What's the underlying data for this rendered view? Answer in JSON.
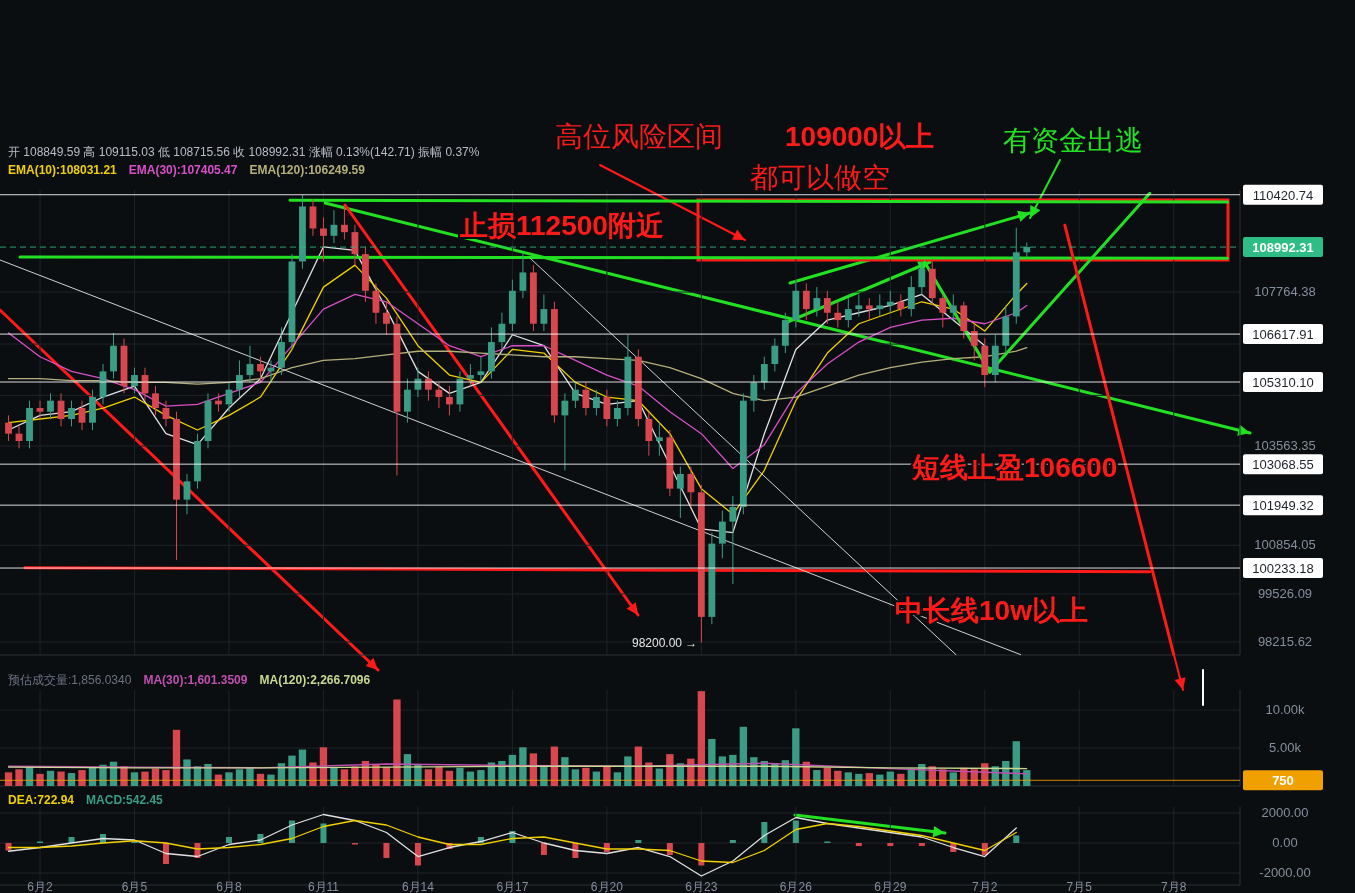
{
  "chart_data": [
    {
      "type": "candlestick",
      "subtitle": "开 108849.59 高 109115.03 低 108715.56 收 108992.31 涨幅 0.13%(142.71) 振幅 0.37%",
      "x": [
        "--06-01T00:00",
        "--06-01T08:00",
        "--06-01T16:00",
        "--06-02T00:00",
        "--06-02T08:00",
        "--06-02T16:00",
        "--06-03T00:00",
        "--06-03T08:00",
        "--06-03T16:00",
        "--06-04T00:00",
        "--06-04T08:00",
        "--06-04T16:00",
        "--06-05T00:00",
        "--06-05T08:00",
        "--06-05T16:00",
        "--06-06T00:00",
        "--06-06T08:00",
        "--06-06T16:00",
        "--06-07T00:00",
        "--06-07T08:00",
        "--06-07T16:00",
        "--06-08T00:00",
        "--06-08T08:00",
        "--06-08T16:00",
        "--06-09T00:00",
        "--06-09T08:00",
        "--06-09T16:00",
        "--06-10T00:00",
        "--06-10T08:00",
        "--06-10T16:00",
        "--06-11T00:00",
        "--06-11T08:00",
        "--06-11T16:00",
        "--06-12T00:00",
        "--06-12T08:00",
        "--06-12T16:00",
        "--06-13T00:00",
        "--06-13T08:00",
        "--06-13T16:00",
        "--06-14T00:00",
        "--06-14T08:00",
        "--06-14T16:00",
        "--06-15T00:00",
        "--06-15T08:00",
        "--06-15T16:00",
        "--06-16T00:00",
        "--06-16T08:00",
        "--06-16T16:00",
        "--06-17T00:00",
        "--06-17T08:00",
        "--06-17T16:00",
        "--06-18T00:00",
        "--06-18T08:00",
        "--06-18T16:00",
        "--06-19T00:00",
        "--06-19T08:00",
        "--06-19T16:00",
        "--06-20T00:00",
        "--06-20T08:00",
        "--06-20T16:00",
        "--06-21T00:00",
        "--06-21T08:00",
        "--06-21T16:00",
        "--06-22T00:00",
        "--06-22T08:00",
        "--06-22T16:00",
        "--06-23T00:00",
        "--06-23T08:00",
        "--06-23T16:00",
        "--06-24T00:00",
        "--06-24T08:00",
        "--06-24T16:00",
        "--06-25T00:00",
        "--06-25T08:00",
        "--06-25T16:00",
        "--06-26T00:00",
        "--06-26T08:00",
        "--06-26T16:00",
        "--06-27T00:00",
        "--06-27T08:00",
        "--06-27T16:00",
        "--06-28T00:00",
        "--06-28T08:00",
        "--06-28T16:00",
        "--06-29T00:00",
        "--06-29T08:00",
        "--06-29T16:00",
        "--06-30T00:00",
        "--06-30T08:00",
        "--06-30T16:00",
        "--07-01T00:00",
        "--07-01T08:00",
        "--07-01T16:00",
        "--07-02T00:00",
        "--07-02T08:00",
        "--07-02T16:00",
        "--07-03T00:00",
        "--07-03T08:00"
      ],
      "ohlc": [
        [
          104200,
          104400,
          103700,
          103900
        ],
        [
          103900,
          104100,
          103500,
          103700
        ],
        [
          103700,
          104800,
          103500,
          104600
        ],
        [
          104600,
          104800,
          104300,
          104500
        ],
        [
          104500,
          105000,
          104300,
          104800
        ],
        [
          104800,
          105000,
          104100,
          104300
        ],
        [
          104300,
          104800,
          104100,
          104600
        ],
        [
          104600,
          104800,
          104000,
          104200
        ],
        [
          104200,
          105100,
          104000,
          104900
        ],
        [
          104900,
          105800,
          104700,
          105600
        ],
        [
          105600,
          106650,
          105400,
          106300
        ],
        [
          106300,
          106500,
          105000,
          105200
        ],
        [
          105200,
          105700,
          105000,
          105500
        ],
        [
          105500,
          105700,
          104800,
          105000
        ],
        [
          105000,
          105200,
          104400,
          104600
        ],
        [
          104600,
          104800,
          104100,
          104300
        ],
        [
          104300,
          104500,
          100450,
          102100
        ],
        [
          102100,
          102800,
          101700,
          102600
        ],
        [
          102600,
          103900,
          102400,
          103700
        ],
        [
          103700,
          105000,
          103500,
          104800
        ],
        [
          104800,
          105000,
          104500,
          104700
        ],
        [
          104700,
          105300,
          104500,
          105100
        ],
        [
          105100,
          105900,
          104900,
          105500
        ],
        [
          105500,
          106300,
          105300,
          105800
        ],
        [
          105800,
          106000,
          105300,
          105600
        ],
        [
          105600,
          105900,
          105300,
          105700
        ],
        [
          105700,
          106800,
          105500,
          106400
        ],
        [
          106400,
          108800,
          106200,
          108600
        ],
        [
          108600,
          110420,
          108400,
          110100
        ],
        [
          110100,
          110300,
          109300,
          109500
        ],
        [
          109500,
          109800,
          108600,
          109300
        ],
        [
          109300,
          110000,
          109100,
          109600
        ],
        [
          109600,
          110100,
          109200,
          109400
        ],
        [
          109400,
          109600,
          108500,
          108800
        ],
        [
          108800,
          109000,
          107500,
          107800
        ],
        [
          107800,
          108000,
          106900,
          107200
        ],
        [
          107200,
          107500,
          106600,
          106900
        ],
        [
          106900,
          107100,
          102760,
          104500
        ],
        [
          104500,
          105400,
          104200,
          105100
        ],
        [
          105100,
          105700,
          104900,
          105400
        ],
        [
          105400,
          105600,
          104800,
          105100
        ],
        [
          105100,
          105300,
          104600,
          104900
        ],
        [
          104900,
          105200,
          104400,
          104700
        ],
        [
          104700,
          105600,
          104500,
          105400
        ],
        [
          105400,
          105800,
          105200,
          105500
        ],
        [
          105500,
          106000,
          105300,
          105600
        ],
        [
          105600,
          106800,
          105400,
          106400
        ],
        [
          106400,
          107200,
          106200,
          106900
        ],
        [
          106900,
          108100,
          106700,
          107800
        ],
        [
          107800,
          108800,
          107600,
          108300
        ],
        [
          108300,
          108500,
          106700,
          106900
        ],
        [
          106900,
          107700,
          106700,
          107300
        ],
        [
          107300,
          107500,
          104200,
          104400
        ],
        [
          104400,
          105000,
          102900,
          104800
        ],
        [
          104800,
          105300,
          104600,
          105100
        ],
        [
          105100,
          105300,
          104400,
          104600
        ],
        [
          104600,
          105100,
          104400,
          104900
        ],
        [
          104900,
          105100,
          104100,
          104300
        ],
        [
          104300,
          104800,
          104100,
          104600
        ],
        [
          104600,
          106600,
          104400,
          106000
        ],
        [
          106000,
          106200,
          104100,
          104300
        ],
        [
          104300,
          104500,
          103300,
          103700
        ],
        [
          103700,
          104200,
          103300,
          103800
        ],
        [
          103800,
          104000,
          102200,
          102400
        ],
        [
          102400,
          103000,
          101600,
          102800
        ],
        [
          102800,
          103000,
          101900,
          102300
        ],
        [
          102300,
          102500,
          98200,
          98900
        ],
        [
          98900,
          101200,
          98700,
          100900
        ],
        [
          100900,
          101800,
          100500,
          101500
        ],
        [
          101500,
          102200,
          99800,
          101900
        ],
        [
          101900,
          105000,
          101700,
          104800
        ],
        [
          104800,
          105500,
          104500,
          105300
        ],
        [
          105300,
          106000,
          105100,
          105800
        ],
        [
          105800,
          106500,
          105600,
          106300
        ],
        [
          106300,
          107200,
          106100,
          107000
        ],
        [
          107000,
          108100,
          106800,
          107800
        ],
        [
          107800,
          108000,
          107000,
          107300
        ],
        [
          107300,
          107900,
          107100,
          107600
        ],
        [
          107600,
          107800,
          106900,
          107200
        ],
        [
          107200,
          107500,
          106800,
          107000
        ],
        [
          107000,
          107600,
          106800,
          107300
        ],
        [
          107300,
          107700,
          107100,
          107400
        ],
        [
          107400,
          107600,
          107000,
          107300
        ],
        [
          107300,
          107700,
          107100,
          107400
        ],
        [
          107400,
          107800,
          107200,
          107500
        ],
        [
          107500,
          107700,
          107100,
          107300
        ],
        [
          107300,
          108200,
          107100,
          107900
        ],
        [
          107900,
          108600,
          107700,
          108400
        ],
        [
          108400,
          108600,
          107400,
          107600
        ],
        [
          107600,
          107700,
          106800,
          107200
        ],
        [
          107200,
          107700,
          107000,
          107400
        ],
        [
          107400,
          107500,
          106500,
          106700
        ],
        [
          106700,
          106900,
          105900,
          106300
        ],
        [
          106300,
          106500,
          105170,
          105500
        ],
        [
          105500,
          106600,
          105300,
          106300
        ],
        [
          106300,
          107400,
          106100,
          107100
        ],
        [
          107100,
          109520,
          106900,
          108849.59
        ],
        [
          108849.59,
          109115.03,
          108715.56,
          108992.31
        ]
      ],
      "colors": [
        "#d9474e",
        "#d9474e",
        "#3b9c86",
        "#d9474e",
        "#3b9c86",
        "#d9474e",
        "#3b9c86",
        "#d9474e",
        "#3b9c86",
        "#3b9c86",
        "#3b9c86",
        "#d9474e",
        "#3b9c86",
        "#d9474e",
        "#d9474e",
        "#d9474e",
        "#d9474e",
        "#3b9c86",
        "#3b9c86",
        "#3b9c86",
        "#d9474e",
        "#3b9c86",
        "#3b9c86",
        "#3b9c86",
        "#d9474e",
        "#3b9c86",
        "#3b9c86",
        "#3b9c86",
        "#3b9c86",
        "#d9474e",
        "#d9474e",
        "#3b9c86",
        "#d9474e",
        "#d9474e",
        "#d9474e",
        "#d9474e",
        "#d9474e",
        "#d9474e",
        "#3b9c86",
        "#3b9c86",
        "#d9474e",
        "#d9474e",
        "#d9474e",
        "#3b9c86",
        "#3b9c86",
        "#3b9c86",
        "#3b9c86",
        "#3b9c86",
        "#3b9c86",
        "#3b9c86",
        "#d9474e",
        "#3b9c86",
        "#d9474e",
        "#3b9c86",
        "#3b9c86",
        "#d9474e",
        "#3b9c86",
        "#d9474e",
        "#3b9c86",
        "#3b9c86",
        "#d9474e",
        "#d9474e",
        "#3b9c86",
        "#d9474e",
        "#3b9c86",
        "#d9474e",
        "#d9474e",
        "#3b9c86",
        "#3b9c86",
        "#3b9c86",
        "#3b9c86",
        "#3b9c86",
        "#3b9c86",
        "#3b9c86",
        "#3b9c86",
        "#3b9c86",
        "#d9474e",
        "#3b9c86",
        "#d9474e",
        "#d9474e",
        "#3b9c86",
        "#3b9c86",
        "#d9474e",
        "#3b9c86",
        "#3b9c86",
        "#d9474e",
        "#3b9c86",
        "#3b9c86",
        "#d9474e",
        "#d9474e",
        "#3b9c86",
        "#d9474e",
        "#d9474e",
        "#d9474e",
        "#3b9c86",
        "#3b9c86",
        "#3b9c86",
        "#3b9c86"
      ],
      "series": [
        {
          "type": "line",
          "color": "#e0e0e0",
          "x": [
            "--06-01",
            "--06-02",
            "--06-03",
            "--06-04",
            "--06-05",
            "--06-06",
            "--06-07",
            "--06-08",
            "--06-09",
            "--06-11",
            "--06-12",
            "--06-13",
            "--06-14",
            "--06-15",
            "--06-16",
            "--06-17",
            "--06-18",
            "--06-19",
            "--06-20",
            "--06-21",
            "--06-23",
            "--06-24",
            "--06-25",
            "--06-26",
            "--06-27",
            "--06-28",
            "--06-29",
            "--06-30",
            "--07-02"
          ],
          "values": [
            104000,
            104400,
            104500,
            104900,
            105200,
            103900,
            103600,
            104600,
            105400,
            109000,
            108900,
            107300,
            105600,
            105000,
            105300,
            106600,
            106300,
            105000,
            104700,
            104800,
            101300,
            101200,
            103900,
            106200,
            107000,
            107200,
            107400,
            107700,
            106300
          ]
        },
        {
          "type": "line",
          "name": "EMA(10):108031.21",
          "color": "#f0d000",
          "x": [
            "--06-01",
            "--06-02",
            "--06-03",
            "--06-04",
            "--06-05",
            "--06-06",
            "--06-07",
            "--06-08",
            "--06-09",
            "--06-10",
            "--06-11",
            "--06-12",
            "--06-13",
            "--06-14",
            "--06-15",
            "--06-16",
            "--06-17",
            "--06-18",
            "--06-19",
            "--06-20",
            "--06-21",
            "--06-22",
            "--06-23",
            "--06-24",
            "--06-25",
            "--06-26",
            "--06-27",
            "--06-28",
            "--06-29",
            "--06-30",
            "--07-01",
            "--07-02",
            "--07-03",
            "--07-03T08:00"
          ],
          "values": [
            104200,
            104300,
            104400,
            104600,
            104900,
            104400,
            104000,
            104400,
            104900,
            106200,
            107900,
            108500,
            107600,
            106300,
            105500,
            105300,
            106200,
            106100,
            105300,
            104900,
            104800,
            103900,
            102400,
            101700,
            102900,
            104800,
            106100,
            106900,
            107200,
            107500,
            107300,
            106700,
            107700,
            108000
          ]
        },
        {
          "type": "line",
          "name": "EMA(30):107405.47",
          "color": "#d94fc8",
          "x": [
            "--06-01",
            "--06-02",
            "--06-03",
            "--06-04",
            "--06-05",
            "--06-06",
            "--06-07",
            "--06-08",
            "--06-09",
            "--06-11",
            "--06-12",
            "--06-13",
            "--06-14",
            "--06-15",
            "--06-16",
            "--06-17",
            "--06-18",
            "--06-19",
            "--06-20",
            "--06-21",
            "--06-22",
            "--06-23",
            "--06-24",
            "--06-25",
            "--06-26",
            "--06-27",
            "--06-28",
            "--06-29",
            "--06-30",
            "--07-01",
            "--07-02",
            "--07-03",
            "--07-03T08:00"
          ],
          "values": [
            106650,
            106000,
            105600,
            105400,
            105100,
            104650,
            104700,
            105000,
            105300,
            107300,
            107700,
            107500,
            106900,
            106300,
            106000,
            106300,
            106300,
            105900,
            105500,
            105200,
            104500,
            103900,
            102950,
            103600,
            105000,
            105800,
            106400,
            106800,
            107000,
            107050,
            106900,
            107200,
            107400
          ]
        },
        {
          "type": "line",
          "name": "EMA(120):106249.59",
          "color": "#b5b07a",
          "x": [
            "--06-01",
            "--06-02",
            "--06-03",
            "--06-04",
            "--06-05",
            "--06-06",
            "--06-07",
            "--06-08",
            "--06-09",
            "--06-10",
            "--06-11",
            "--06-12",
            "--06-13",
            "--06-14",
            "--06-15",
            "--06-16",
            "--06-17",
            "--06-18",
            "--06-19",
            "--06-20",
            "--06-21",
            "--06-22",
            "--06-23",
            "--06-24",
            "--06-25",
            "--06-26",
            "--06-27",
            "--06-28",
            "--06-29",
            "--06-30",
            "--07-01",
            "--07-02",
            "--07-03",
            "--07-03T08:00"
          ],
          "values": [
            105400,
            105400,
            105350,
            105350,
            105300,
            105300,
            105250,
            105300,
            105400,
            105700,
            105900,
            105950,
            106050,
            106150,
            106150,
            106100,
            106050,
            106000,
            106000,
            105950,
            105900,
            105700,
            105400,
            105000,
            104800,
            104900,
            105200,
            105500,
            105700,
            105850,
            105950,
            106000,
            106150,
            106250
          ]
        },
        {
          "type": "line",
          "color": "#22e022",
          "x": [
            "--06-09T22:30",
            "--07-09T17:00"
          ],
          "values": [
            110270,
            110220
          ]
        },
        {
          "type": "line",
          "color": "#22e022",
          "x": [
            "--06-01T08:45",
            "--07-09T17:00"
          ],
          "values": [
            108720,
            108690
          ]
        },
        {
          "type": "line",
          "color": "#22e022",
          "x": [
            "--06-30T02:10",
            "--07-02T03:50"
          ],
          "values": [
            108580,
            105580
          ]
        },
        {
          "type": "line",
          "color": "#22e022",
          "x": [
            "--07-02T03:50",
            "--07-07T05:45"
          ],
          "values": [
            105580,
            110460
          ]
        },
        {
          "type": "line",
          "color": "#ff1a1a",
          "x": [
            "--06-01T12:30",
            "--07-07T05:45"
          ],
          "values": [
            100240,
            100130
          ]
        },
        {
          "type": "line",
          "color": "#ff1a1a",
          "x": [
            "--07-04T13:00",
            "--07-08T00:00"
          ],
          "values": [
            109590,
            97870
          ]
        },
        {
          "type": "line",
          "color": "#d0d0d0",
          "x": [
            "--05-31T17:30",
            "--07-03T03:20"
          ],
          "values": [
            108640,
            97870
          ]
        },
        {
          "type": "line",
          "color": "#d0d0d0",
          "x": [
            "--06-17T13:30",
            "--07-01T02:00"
          ],
          "values": [
            108690,
            97870
          ]
        }
      ],
      "ref_lines": [
        {
          "axis": "y",
          "value": 110420.74,
          "label": "110420.74",
          "color": "#ffffff"
        },
        {
          "axis": "y",
          "value": 108992.31,
          "label": "108992.31",
          "color": "#2ebd85",
          "line_style": "dashed"
        },
        {
          "axis": "y",
          "value": 106617.91,
          "label": "106617.91",
          "color": "#ffffff"
        },
        {
          "axis": "y",
          "value": 105310.1,
          "label": "105310.10",
          "color": "#ffffff"
        },
        {
          "axis": "y",
          "value": 103068.55,
          "label": "103068.55",
          "color": "#ffffff"
        },
        {
          "axis": "y",
          "value": 101949.32,
          "label": "101949.32",
          "color": "#ffffff"
        },
        {
          "axis": "y",
          "value": 100233.18,
          "label": "100233.18",
          "color": "#ffffff"
        }
      ],
      "annotations": [
        "高位风险区间",
        "109000以上",
        "都可以做空",
        "有资金出逃",
        "止损112500附近",
        "短线止盈106600",
        "中长线10w以上",
        {
          "text": "98200.00 →",
          "x": "--06-23",
          "y": 98200
        }
      ],
      "xlim": [
        "--05-31T17:30",
        "--07-10T02:30"
      ],
      "ylim": [
        97860,
        110550
      ],
      "xticks": [
        {
          "value": "--06-02",
          "label": null
        },
        {
          "value": "--06-05",
          "label": null
        },
        {
          "value": "--06-08",
          "label": null
        },
        {
          "value": "--06-11",
          "label": null
        },
        {
          "value": "--06-14",
          "label": null
        },
        {
          "value": "--06-17",
          "label": null
        },
        {
          "value": "--06-20",
          "label": null
        },
        {
          "value": "--06-23",
          "label": null
        },
        {
          "value": "--06-26",
          "label": null
        },
        {
          "value": "--06-29",
          "label": null
        },
        {
          "value": "--07-02",
          "label": null
        },
        {
          "value": "--07-05",
          "label": null
        },
        {
          "value": "--07-08",
          "label": null
        }
      ],
      "yticks": [
        107764.38,
        {
          "value": 106345.43,
          "label": null
        },
        {
          "value": 104945.17,
          "label": null
        },
        103563.35,
        100854.05,
        99526.09,
        98215.62
      ],
      "grid": true,
      "legend": "top left",
      "tick_labels": "y"
    },
    {
      "type": "bar",
      "x": [
        "--06-01T00:00",
        "--06-01T08:00",
        "--06-01T16:00",
        "--06-02T00:00",
        "--06-02T08:00",
        "--06-02T16:00",
        "--06-03T00:00",
        "--06-03T08:00",
        "--06-03T16:00",
        "--06-04T00:00",
        "--06-04T08:00",
        "--06-04T16:00",
        "--06-05T00:00",
        "--06-05T08:00",
        "--06-05T16:00",
        "--06-06T00:00",
        "--06-06T08:00",
        "--06-06T16:00",
        "--06-07T00:00",
        "--06-07T08:00",
        "--06-07T16:00",
        "--06-08T00:00",
        "--06-08T08:00",
        "--06-08T16:00",
        "--06-09T00:00",
        "--06-09T08:00",
        "--06-09T16:00",
        "--06-10T00:00",
        "--06-10T08:00",
        "--06-10T16:00",
        "--06-11T00:00",
        "--06-11T08:00",
        "--06-11T16:00",
        "--06-12T00:00",
        "--06-12T08:00",
        "--06-12T16:00",
        "--06-13T00:00",
        "--06-13T08:00",
        "--06-13T16:00",
        "--06-14T00:00",
        "--06-14T08:00",
        "--06-14T16:00",
        "--06-15T00:00",
        "--06-15T08:00",
        "--06-15T16:00",
        "--06-16T00:00",
        "--06-16T08:00",
        "--06-16T16:00",
        "--06-17T00:00",
        "--06-17T08:00",
        "--06-17T16:00",
        "--06-18T00:00",
        "--06-18T08:00",
        "--06-18T16:00",
        "--06-19T00:00",
        "--06-19T08:00",
        "--06-19T16:00",
        "--06-20T00:00",
        "--06-20T08:00",
        "--06-20T16:00",
        "--06-21T00:00",
        "--06-21T08:00",
        "--06-21T16:00",
        "--06-22T00:00",
        "--06-22T08:00",
        "--06-22T16:00",
        "--06-23T00:00",
        "--06-23T08:00",
        "--06-23T16:00",
        "--06-24T00:00",
        "--06-24T08:00",
        "--06-24T16:00",
        "--06-25T00:00",
        "--06-25T08:00",
        "--06-25T16:00",
        "--06-26T00:00",
        "--06-26T08:00",
        "--06-26T16:00",
        "--06-27T00:00",
        "--06-27T08:00",
        "--06-27T16:00",
        "--06-28T00:00",
        "--06-28T08:00",
        "--06-28T16:00",
        "--06-29T00:00",
        "--06-29T08:00",
        "--06-29T16:00",
        "--06-30T00:00",
        "--06-30T08:00",
        "--06-30T16:00",
        "--07-01T00:00",
        "--07-01T08:00",
        "--07-01T16:00",
        "--07-02T00:00",
        "--07-02T08:00",
        "--07-02T16:00",
        "--07-03T00:00",
        "--07-03T08:00"
      ],
      "values": [
        1800,
        2200,
        2500,
        1600,
        2000,
        1900,
        1700,
        2100,
        2400,
        2800,
        3200,
        2600,
        1800,
        1900,
        2300,
        2100,
        7400,
        3500,
        2600,
        2900,
        1500,
        1800,
        2200,
        2400,
        1600,
        1500,
        3000,
        4000,
        4800,
        3100,
        5100,
        2400,
        2200,
        2600,
        3300,
        2900,
        2500,
        11400,
        4200,
        2800,
        2200,
        2500,
        2000,
        2400,
        1900,
        2100,
        3100,
        3300,
        4100,
        5100,
        4300,
        2500,
        5200,
        3800,
        2200,
        2400,
        1900,
        2600,
        1800,
        3900,
        5200,
        3100,
        2300,
        4200,
        3000,
        3600,
        12500,
        6200,
        3900,
        4100,
        7800,
        3800,
        3300,
        3000,
        3400,
        7600,
        3200,
        2100,
        2400,
        2000,
        1800,
        1600,
        1700,
        1500,
        1900,
        1600,
        2300,
        2900,
        2600,
        2200,
        1800,
        2400,
        2200,
        3000,
        2600,
        3300,
        5900,
        2100
      ],
      "colors": [
        "#d9474e",
        "#d9474e",
        "#3b9c86",
        "#d9474e",
        "#3b9c86",
        "#d9474e",
        "#3b9c86",
        "#d9474e",
        "#3b9c86",
        "#3b9c86",
        "#3b9c86",
        "#d9474e",
        "#3b9c86",
        "#d9474e",
        "#d9474e",
        "#d9474e",
        "#d9474e",
        "#3b9c86",
        "#3b9c86",
        "#3b9c86",
        "#d9474e",
        "#3b9c86",
        "#3b9c86",
        "#3b9c86",
        "#d9474e",
        "#3b9c86",
        "#3b9c86",
        "#3b9c86",
        "#3b9c86",
        "#d9474e",
        "#d9474e",
        "#3b9c86",
        "#d9474e",
        "#d9474e",
        "#d9474e",
        "#d9474e",
        "#d9474e",
        "#d9474e",
        "#3b9c86",
        "#3b9c86",
        "#d9474e",
        "#d9474e",
        "#d9474e",
        "#3b9c86",
        "#3b9c86",
        "#3b9c86",
        "#3b9c86",
        "#3b9c86",
        "#3b9c86",
        "#3b9c86",
        "#d9474e",
        "#3b9c86",
        "#d9474e",
        "#3b9c86",
        "#3b9c86",
        "#d9474e",
        "#3b9c86",
        "#d9474e",
        "#3b9c86",
        "#3b9c86",
        "#d9474e",
        "#d9474e",
        "#3b9c86",
        "#d9474e",
        "#3b9c86",
        "#d9474e",
        "#d9474e",
        "#3b9c86",
        "#3b9c86",
        "#3b9c86",
        "#3b9c86",
        "#3b9c86",
        "#3b9c86",
        "#3b9c86",
        "#3b9c86",
        "#3b9c86",
        "#d9474e",
        "#3b9c86",
        "#d9474e",
        "#d9474e",
        "#3b9c86",
        "#3b9c86",
        "#d9474e",
        "#3b9c86",
        "#3b9c86",
        "#d9474e",
        "#3b9c86",
        "#3b9c86",
        "#d9474e",
        "#d9474e",
        "#3b9c86",
        "#d9474e",
        "#d9474e",
        "#d9474e",
        "#3b9c86",
        "#3b9c86",
        "#3b9c86",
        "#3b9c86"
      ],
      "series": [
        {
          "type": "line",
          "name": "MA(30):1,601.3509",
          "color": "#c050b0",
          "x": [
            "--06-01",
            "--06-05",
            "--06-09",
            "--06-13",
            "--06-17",
            "--06-21",
            "--06-25",
            "--06-29",
            "--07-03T08:00"
          ],
          "values": [
            2600,
            2500,
            2400,
            2900,
            2700,
            2600,
            3000,
            2300,
            1600
          ]
        },
        {
          "type": "line",
          "name": "MA(120):2,266.7096",
          "color": "#c8d890",
          "x": [
            "--06-01",
            "--06-05",
            "--06-09",
            "--06-13",
            "--06-17",
            "--06-21",
            "--06-25",
            "--06-29",
            "--07-03T08:00"
          ],
          "values": [
            2500,
            2400,
            2400,
            2500,
            2600,
            2600,
            2600,
            2400,
            2300
          ]
        }
      ],
      "ref_lines": [
        {
          "axis": "y",
          "value": 750,
          "label": "750",
          "color": "#f0a000"
        }
      ],
      "annotations": [
        "预估成交量:1,856.0340"
      ],
      "legend": "top",
      "xlim": [
        "--05-31T17:30",
        "--07-10T02:30"
      ],
      "ylim": [
        0,
        12650
      ],
      "xticks": [
        {
          "value": "--06-02",
          "label": null
        },
        {
          "value": "--06-05",
          "label": null
        },
        {
          "value": "--06-08",
          "label": null
        },
        {
          "value": "--06-11",
          "label": null
        },
        {
          "value": "--06-14",
          "label": null
        },
        {
          "value": "--06-17",
          "label": null
        },
        {
          "value": "--06-20",
          "label": null
        },
        {
          "value": "--06-23",
          "label": null
        },
        {
          "value": "--06-26",
          "label": null
        },
        {
          "value": "--06-29",
          "label": null
        },
        {
          "value": "--07-02",
          "label": null
        },
        {
          "value": "--07-05",
          "label": null
        },
        {
          "value": "--07-08",
          "label": null
        }
      ],
      "yticks": [
        {
          "value": 5000,
          "label": "5.00k"
        },
        {
          "value": 10000,
          "label": "10.00k"
        }
      ],
      "grid": true,
      "tick_labels": "y"
    },
    {
      "type": "bar",
      "x": [
        "--06-01",
        "--06-02",
        "--06-03",
        "--06-04",
        "--06-05",
        "--06-06",
        "--06-07",
        "--06-08",
        "--06-09",
        "--06-10",
        "--06-11",
        "--06-12",
        "--06-13",
        "--06-14",
        "--06-15",
        "--06-16",
        "--06-17",
        "--06-18",
        "--06-19",
        "--06-20",
        "--06-21",
        "--06-22",
        "--06-23",
        "--06-24",
        "--06-25",
        "--06-26",
        "--06-27",
        "--06-28",
        "--06-29",
        "--06-30",
        "--07-01",
        "--07-02",
        "--07-03"
      ],
      "series": [
        {
          "type": "line",
          "color": "#e0e0e0",
          "values": [
            -550,
            -300,
            0,
            300,
            200,
            -700,
            -900,
            -100,
            200,
            1200,
            1900,
            1500,
            700,
            -900,
            -300,
            100,
            700,
            0,
            -500,
            -700,
            -300,
            -900,
            -2200,
            -1200,
            500,
            1700,
            1300,
            1000,
            700,
            400,
            -300,
            -900,
            1000
          ]
        },
        {
          "type": "line",
          "name": "DEA:722.94",
          "color": "#f0d000",
          "values": [
            -300,
            -300,
            -200,
            0,
            150,
            0,
            -400,
            -300,
            -100,
            300,
            1100,
            1500,
            1200,
            400,
            -100,
            -100,
            300,
            400,
            0,
            -400,
            -400,
            -500,
            -1200,
            -1300,
            -500,
            900,
            1300,
            1100,
            800,
            500,
            0,
            -500,
            700
          ]
        },
        {
          "type": "bar",
          "name": "MACD:542.45",
          "values": [
            -500,
            100,
            400,
            600,
            100,
            -1400,
            -1000,
            400,
            600,
            1500,
            1300,
            -100,
            -1000,
            -1500,
            -400,
            400,
            800,
            -800,
            -1000,
            -600,
            200,
            -800,
            -1500,
            200,
            1400,
            1500,
            100,
            -200,
            -200,
            -200,
            -600,
            -800,
            500
          ],
          "colors": [
            "#d9474e",
            "#3b9c86",
            "#3b9c86",
            "#3b9c86",
            "#3b9c86",
            "#d9474e",
            "#d9474e",
            "#3b9c86",
            "#3b9c86",
            "#3b9c86",
            "#3b9c86",
            "#d9474e",
            "#d9474e",
            "#d9474e",
            "#d9474e",
            "#3b9c86",
            "#3b9c86",
            "#d9474e",
            "#d9474e",
            "#d9474e",
            "#3b9c86",
            "#d9474e",
            "#d9474e",
            "#3b9c86",
            "#3b9c86",
            "#3b9c86",
            "#3b9c86",
            "#d9474e",
            "#d9474e",
            "#d9474e",
            "#d9474e",
            "#d9474e",
            "#3b9c86"
          ]
        }
      ],
      "xlim": [
        "--05-31T17:30",
        "--07-10T02:30"
      ],
      "ylim": [
        -2800,
        2400
      ],
      "xticks": [
        {
          "value": "--06-02",
          "label": "6月2"
        },
        {
          "value": "--06-05",
          "label": "6月5"
        },
        {
          "value": "--06-08",
          "label": "6月8"
        },
        {
          "value": "--06-11",
          "label": "6月11"
        },
        {
          "value": "--06-14",
          "label": "6月14"
        },
        {
          "value": "--06-17",
          "label": "6月17"
        },
        {
          "value": "--06-20",
          "label": "6月20"
        },
        {
          "value": "--06-23",
          "label": "6月23"
        },
        {
          "value": "--06-26",
          "label": "6月26"
        },
        {
          "value": "--06-29",
          "label": "6月29"
        },
        {
          "value": "--07-02",
          "label": "7月2"
        },
        {
          "value": "--07-05",
          "label": "7月5"
        },
        {
          "value": "--07-08",
          "label": "7月8"
        }
      ],
      "yticks": [
        {
          "value": 2000,
          "label": "2000.00"
        },
        {
          "value": 0,
          "label": "0.00"
        },
        {
          "value": -2000,
          "label": "-2000.00"
        }
      ],
      "grid": true,
      "legend": "top left"
    }
  ]
}
